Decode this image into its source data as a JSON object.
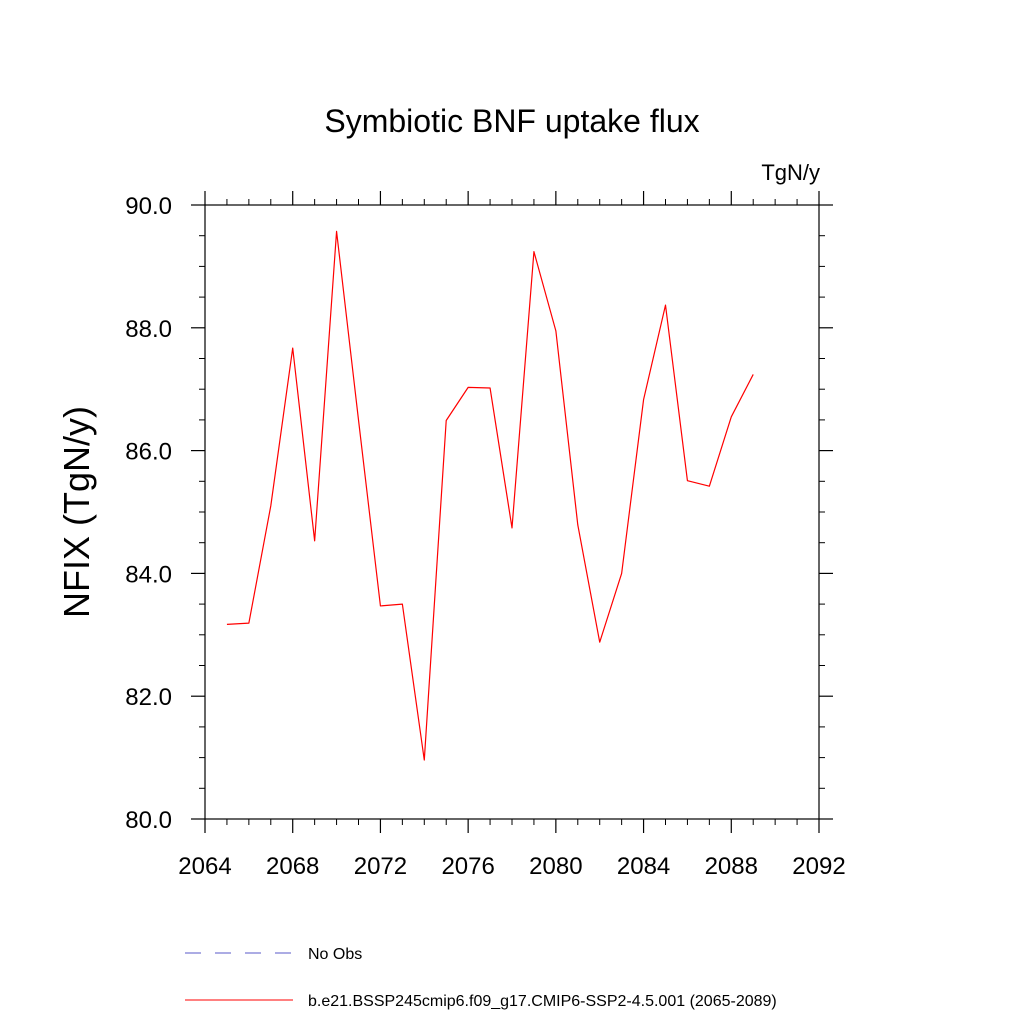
{
  "chart_data": {
    "type": "line",
    "title": "Symbiotic BNF uptake flux",
    "units": "TgN/y",
    "ylabel": "NFIX  (TgN/y)",
    "xlabel": "",
    "xlim": [
      2064,
      2092
    ],
    "ylim": [
      80.0,
      90.0
    ],
    "x_ticks": [
      "2064",
      "2068",
      "2072",
      "2076",
      "2080",
      "2084",
      "2088",
      "2092"
    ],
    "y_ticks": [
      "80.0",
      "82.0",
      "84.0",
      "86.0",
      "88.0",
      "90.0"
    ],
    "grid": false,
    "legend_position": "bottom",
    "series": [
      {
        "name": "b.e21.BSSP245cmip6.f09_g17.CMIP6-SSP2-4.5.001 (2065-2089)",
        "color": "#ff0000",
        "style": "solid",
        "x": [
          2065,
          2066,
          2067,
          2068,
          2069,
          2070,
          2071,
          2072,
          2073,
          2074,
          2075,
          2076,
          2077,
          2078,
          2079,
          2080,
          2081,
          2082,
          2083,
          2084,
          2085,
          2086,
          2087,
          2088,
          2089
        ],
        "y": [
          83.17,
          83.19,
          85.1,
          87.67,
          84.53,
          89.57,
          86.5,
          83.47,
          83.5,
          80.96,
          86.49,
          87.03,
          87.02,
          84.74,
          89.24,
          87.95,
          84.79,
          82.88,
          84.0,
          86.83,
          88.37,
          85.51,
          85.42,
          86.55,
          87.24
        ]
      }
    ],
    "legend": [
      {
        "label": "No Obs",
        "color": "#0000ff",
        "style": "dashed"
      },
      {
        "label": "b.e21.BSSP245cmip6.f09_g17.CMIP6-SSP2-4.5.001 (2065-2089)",
        "color": "#ff0000",
        "style": "solid"
      }
    ]
  }
}
